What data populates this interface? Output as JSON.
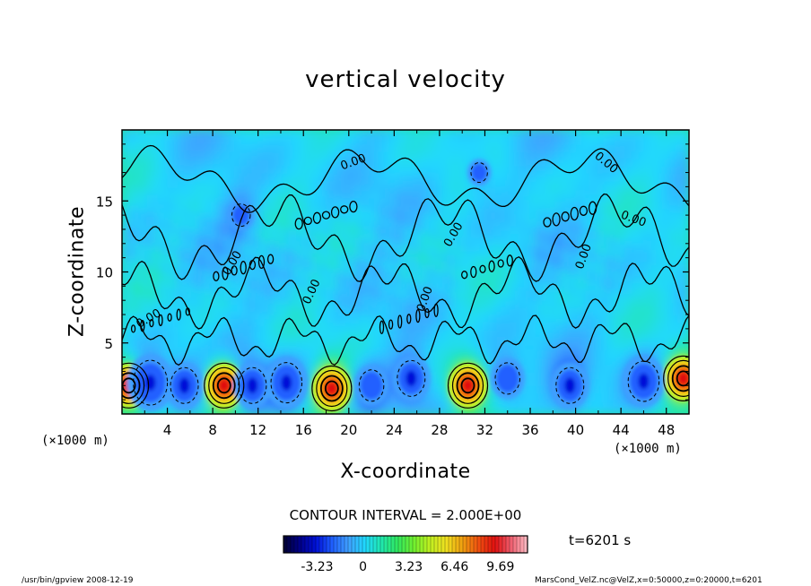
{
  "figure": {
    "title": "vertical velocity",
    "contour_interval": "CONTOUR INTERVAL = 2.000E+00",
    "time_label": "t=6201 s",
    "footer_left": "/usr/bin/gpview   2008-12-19",
    "footer_right": "MarsCond_VelZ.nc@VelZ,x=0:50000,z=0:20000,t=6201"
  },
  "chart_data": {
    "type": "heatmap",
    "title": "vertical velocity",
    "xlabel": "X-coordinate",
    "ylabel": "Z-coordinate",
    "x_unit_label": "(×1000 m)",
    "xlim": [
      0,
      50
    ],
    "ylim": [
      0,
      20
    ],
    "x_ticks": [
      4,
      8,
      12,
      16,
      20,
      24,
      28,
      32,
      36,
      40,
      44,
      48
    ],
    "y_ticks": [
      5,
      10,
      15
    ],
    "contour_labels": [
      "0.00",
      "0.00",
      "0.00",
      "0.00",
      "0.00",
      "0.00",
      "0.00",
      "0.00",
      "0.00"
    ],
    "colorbar": {
      "ticks": [
        "-3.23",
        "0",
        "3.23",
        "6.46",
        "9.69"
      ],
      "min": -5.6,
      "max": 11.6,
      "colors": [
        "#000030",
        "#000088",
        "#0010d8",
        "#2060ff",
        "#40a0ff",
        "#20d8ff",
        "#20e8b0",
        "#30e860",
        "#70f030",
        "#c0f020",
        "#f0e020",
        "#f0a010",
        "#f05010",
        "#e01010",
        "#f06070",
        "#ffc0c8"
      ]
    },
    "updrafts": [
      {
        "x": 0.6,
        "z": 2.0,
        "peak": 8
      },
      {
        "x": 9.0,
        "z": 2.0,
        "peak": 10
      },
      {
        "x": 18.5,
        "z": 1.8,
        "peak": 10
      },
      {
        "x": 30.5,
        "z": 2.0,
        "peak": 9
      },
      {
        "x": 49.5,
        "z": 2.5,
        "peak": 9
      }
    ],
    "downdrafts": [
      {
        "x": 2.5,
        "z": 2.2,
        "peak": -4
      },
      {
        "x": 5.5,
        "z": 2.0,
        "peak": -3
      },
      {
        "x": 11.5,
        "z": 2.0,
        "peak": -3
      },
      {
        "x": 14.5,
        "z": 2.2,
        "peak": -3.5
      },
      {
        "x": 22.0,
        "z": 2.0,
        "peak": -2.5
      },
      {
        "x": 25.5,
        "z": 2.5,
        "peak": -3
      },
      {
        "x": 34.0,
        "z": 2.5,
        "peak": -2.5
      },
      {
        "x": 39.5,
        "z": 2.0,
        "peak": -3
      },
      {
        "x": 46.0,
        "z": 2.3,
        "peak": -3.5
      },
      {
        "x": 10.5,
        "z": 14.0,
        "peak": -1.5
      },
      {
        "x": 31.5,
        "z": 17.0,
        "peak": -1.2
      }
    ]
  }
}
